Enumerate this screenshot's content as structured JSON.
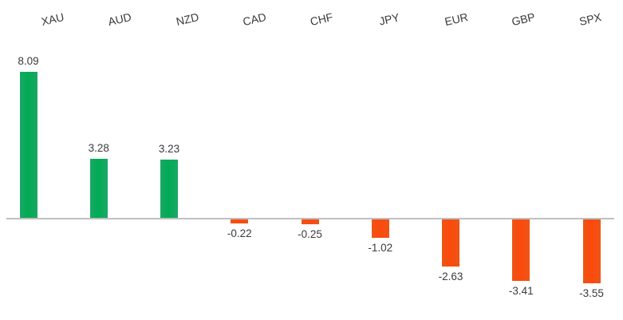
{
  "chart_data": {
    "type": "bar",
    "categories": [
      "XAU",
      "AUD",
      "NZD",
      "CAD",
      "CHF",
      "JPY",
      "EUR",
      "GBP",
      "SPX"
    ],
    "values": [
      8.09,
      3.28,
      3.23,
      -0.22,
      -0.25,
      -1.02,
      -2.63,
      -3.41,
      -3.55
    ],
    "value_labels": [
      "8.09",
      "3.28",
      "3.23",
      "-0.22",
      "-0.25",
      "-1.02",
      "-2.63",
      "-3.41",
      "-3.55"
    ],
    "title": "",
    "xlabel": "",
    "ylabel": "",
    "ylim": [
      -4,
      9
    ],
    "grid": false,
    "legend": false,
    "category_label_position": "top",
    "category_label_rotation_deg": -13,
    "data_labels": "outside-end",
    "colors": {
      "positive_bar": "#00AB55",
      "positive_bar_edge": "#1BA765",
      "negative_bar": "#FB4A0D",
      "negative_bar_edge": "#EF5415",
      "axis_line": "#BFBFBF",
      "label_text": "#3A3A3A",
      "background": "#FFFFFF"
    }
  }
}
